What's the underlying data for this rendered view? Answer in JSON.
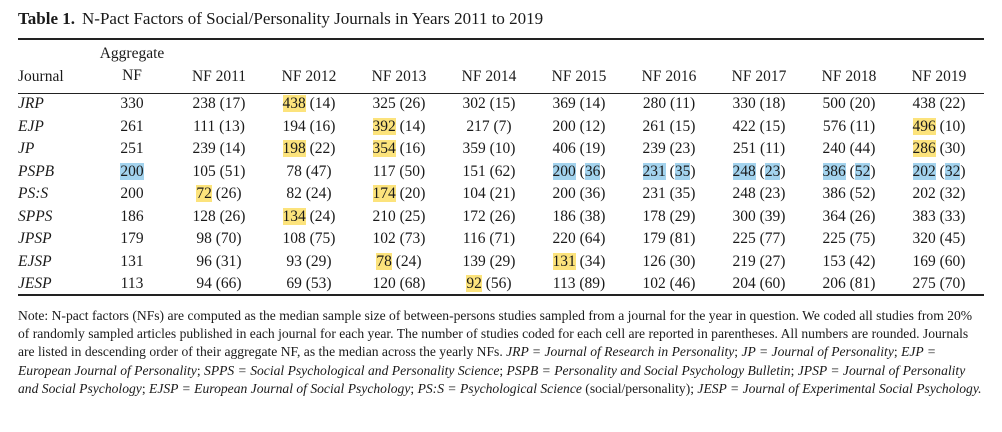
{
  "caption": {
    "label": "Table 1.",
    "title": "N-Pact Factors of Social/Personality Journals in Years 2011 to 2019"
  },
  "columns": [
    "Journal",
    "Aggregate NF",
    "NF 2011",
    "NF 2012",
    "NF 2013",
    "NF 2014",
    "NF 2015",
    "NF 2016",
    "NF 2017",
    "NF 2018",
    "NF 2019"
  ],
  "highlight_colors": {
    "yellow": "#fce37c",
    "blue": "#a3d3ee"
  },
  "rows": [
    {
      "journal": "JRP",
      "aggregate": "330",
      "aggregate_hl": "",
      "years": [
        {
          "nf": "238",
          "n": "(17)",
          "hl": ""
        },
        {
          "nf": "438",
          "n": "(14)",
          "hl": "yellow"
        },
        {
          "nf": "325",
          "n": "(26)",
          "hl": ""
        },
        {
          "nf": "302",
          "n": "(15)",
          "hl": ""
        },
        {
          "nf": "369",
          "n": "(14)",
          "hl": ""
        },
        {
          "nf": "280",
          "n": "(11)",
          "hl": ""
        },
        {
          "nf": "330",
          "n": "(18)",
          "hl": ""
        },
        {
          "nf": "500",
          "n": "(20)",
          "hl": ""
        },
        {
          "nf": "438",
          "n": "(22)",
          "hl": ""
        }
      ]
    },
    {
      "journal": "EJP",
      "aggregate": "261",
      "aggregate_hl": "",
      "years": [
        {
          "nf": "111",
          "n": "(13)",
          "hl": ""
        },
        {
          "nf": "194",
          "n": "(16)",
          "hl": ""
        },
        {
          "nf": "392",
          "n": "(14)",
          "hl": "yellow"
        },
        {
          "nf": "217",
          "n": "(7)",
          "hl": ""
        },
        {
          "nf": "200",
          "n": "(12)",
          "hl": ""
        },
        {
          "nf": "261",
          "n": "(15)",
          "hl": ""
        },
        {
          "nf": "422",
          "n": "(15)",
          "hl": ""
        },
        {
          "nf": "576",
          "n": "(11)",
          "hl": ""
        },
        {
          "nf": "496",
          "n": "(10)",
          "hl": "yellow"
        }
      ]
    },
    {
      "journal": "JP",
      "aggregate": "251",
      "aggregate_hl": "",
      "years": [
        {
          "nf": "239",
          "n": "(14)",
          "hl": ""
        },
        {
          "nf": "198",
          "n": "(22)",
          "hl": "yellow"
        },
        {
          "nf": "354",
          "n": "(16)",
          "hl": "yellow"
        },
        {
          "nf": "359",
          "n": "(10)",
          "hl": ""
        },
        {
          "nf": "406",
          "n": "(19)",
          "hl": ""
        },
        {
          "nf": "239",
          "n": "(23)",
          "hl": ""
        },
        {
          "nf": "251",
          "n": "(11)",
          "hl": ""
        },
        {
          "nf": "240",
          "n": "(44)",
          "hl": ""
        },
        {
          "nf": "286",
          "n": "(30)",
          "hl": "yellow"
        }
      ]
    },
    {
      "journal": "PSPB",
      "aggregate": "200",
      "aggregate_hl": "blue",
      "years": [
        {
          "nf": "105",
          "n": "(51)",
          "hl": ""
        },
        {
          "nf": "78",
          "n": "(47)",
          "hl": ""
        },
        {
          "nf": "117",
          "n": "(50)",
          "hl": ""
        },
        {
          "nf": "151",
          "n": "(62)",
          "hl": ""
        },
        {
          "nf": "200",
          "n": "(36)",
          "hl": "blue"
        },
        {
          "nf": "231",
          "n": "(35)",
          "hl": "blue"
        },
        {
          "nf": "248",
          "n": "(23)",
          "hl": "blue"
        },
        {
          "nf": "386",
          "n": "(52)",
          "hl": "blue"
        },
        {
          "nf": "202",
          "n": "(32)",
          "hl": "blue"
        }
      ]
    },
    {
      "journal": "PS:S",
      "aggregate": "200",
      "aggregate_hl": "",
      "years": [
        {
          "nf": "72",
          "n": "(26)",
          "hl": "yellow"
        },
        {
          "nf": "82",
          "n": "(24)",
          "hl": ""
        },
        {
          "nf": "174",
          "n": "(20)",
          "hl": "yellow"
        },
        {
          "nf": "104",
          "n": "(21)",
          "hl": ""
        },
        {
          "nf": "200",
          "n": "(36)",
          "hl": ""
        },
        {
          "nf": "231",
          "n": "(35)",
          "hl": ""
        },
        {
          "nf": "248",
          "n": "(23)",
          "hl": ""
        },
        {
          "nf": "386",
          "n": "(52)",
          "hl": ""
        },
        {
          "nf": "202",
          "n": "(32)",
          "hl": ""
        }
      ]
    },
    {
      "journal": "SPPS",
      "aggregate": "186",
      "aggregate_hl": "",
      "years": [
        {
          "nf": "128",
          "n": "(26)",
          "hl": ""
        },
        {
          "nf": "134",
          "n": "(24)",
          "hl": "yellow"
        },
        {
          "nf": "210",
          "n": "(25)",
          "hl": ""
        },
        {
          "nf": "172",
          "n": "(26)",
          "hl": ""
        },
        {
          "nf": "186",
          "n": "(38)",
          "hl": ""
        },
        {
          "nf": "178",
          "n": "(29)",
          "hl": ""
        },
        {
          "nf": "300",
          "n": "(39)",
          "hl": ""
        },
        {
          "nf": "364",
          "n": "(26)",
          "hl": ""
        },
        {
          "nf": "383",
          "n": "(33)",
          "hl": ""
        }
      ]
    },
    {
      "journal": "JPSP",
      "aggregate": "179",
      "aggregate_hl": "",
      "years": [
        {
          "nf": "98",
          "n": "(70)",
          "hl": ""
        },
        {
          "nf": "108",
          "n": "(75)",
          "hl": ""
        },
        {
          "nf": "102",
          "n": "(73)",
          "hl": ""
        },
        {
          "nf": "116",
          "n": "(71)",
          "hl": ""
        },
        {
          "nf": "220",
          "n": "(64)",
          "hl": ""
        },
        {
          "nf": "179",
          "n": "(81)",
          "hl": ""
        },
        {
          "nf": "225",
          "n": "(77)",
          "hl": ""
        },
        {
          "nf": "225",
          "n": "(75)",
          "hl": ""
        },
        {
          "nf": "320",
          "n": "(45)",
          "hl": ""
        }
      ]
    },
    {
      "journal": "EJSP",
      "aggregate": "131",
      "aggregate_hl": "",
      "years": [
        {
          "nf": "96",
          "n": "(31)",
          "hl": ""
        },
        {
          "nf": "93",
          "n": "(29)",
          "hl": ""
        },
        {
          "nf": "78",
          "n": "(24)",
          "hl": "yellow"
        },
        {
          "nf": "139",
          "n": "(29)",
          "hl": ""
        },
        {
          "nf": "131",
          "n": "(34)",
          "hl": "yellow"
        },
        {
          "nf": "126",
          "n": "(30)",
          "hl": ""
        },
        {
          "nf": "219",
          "n": "(27)",
          "hl": ""
        },
        {
          "nf": "153",
          "n": "(42)",
          "hl": ""
        },
        {
          "nf": "169",
          "n": "(60)",
          "hl": ""
        }
      ]
    },
    {
      "journal": "JESP",
      "aggregate": "113",
      "aggregate_hl": "",
      "years": [
        {
          "nf": "94",
          "n": "(66)",
          "hl": ""
        },
        {
          "nf": "69",
          "n": "(53)",
          "hl": ""
        },
        {
          "nf": "120",
          "n": "(68)",
          "hl": ""
        },
        {
          "nf": "92",
          "n": "(56)",
          "hl": "yellow"
        },
        {
          "nf": "113",
          "n": "(89)",
          "hl": ""
        },
        {
          "nf": "102",
          "n": "(46)",
          "hl": ""
        },
        {
          "nf": "204",
          "n": "(60)",
          "hl": ""
        },
        {
          "nf": "206",
          "n": "(81)",
          "hl": ""
        },
        {
          "nf": "275",
          "n": "(70)",
          "hl": ""
        }
      ]
    }
  ],
  "note": [
    {
      "t": "Note: N-pact factors (NFs) are computed as the median sample size of between-persons studies sampled from a journal for the year in question. We coded all studies from 20% of randomly sampled articles published in each journal for each year. The number of studies coded for each cell are reported in parentheses. All numbers are rounded. Journals are listed in descending order of their aggregate NF, as the median across the yearly NFs. ",
      "i": false
    },
    {
      "t": "JRP = Journal of Research in Personality",
      "i": true
    },
    {
      "t": "; ",
      "i": false
    },
    {
      "t": "JP = Journal of Personality",
      "i": true
    },
    {
      "t": "; ",
      "i": false
    },
    {
      "t": "EJP = European Journal of Personality",
      "i": true
    },
    {
      "t": "; ",
      "i": false
    },
    {
      "t": "SPPS = Social Psychological and Personality Science",
      "i": true
    },
    {
      "t": "; ",
      "i": false
    },
    {
      "t": "PSPB = Personality and Social Psychology Bulletin",
      "i": true
    },
    {
      "t": "; ",
      "i": false
    },
    {
      "t": "JPSP = Journal of Personality and Social Psychology",
      "i": true
    },
    {
      "t": "; ",
      "i": false
    },
    {
      "t": "EJSP = European Journal of Social Psychology",
      "i": true
    },
    {
      "t": "; ",
      "i": false
    },
    {
      "t": "PS:S = Psychological Science",
      "i": true
    },
    {
      "t": " (social/personality); ",
      "i": false
    },
    {
      "t": "JESP = Journal of Experimental Social Psychology.",
      "i": true
    }
  ]
}
